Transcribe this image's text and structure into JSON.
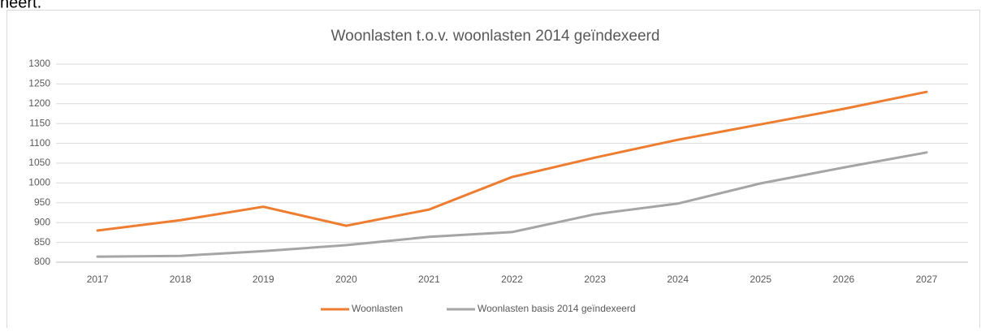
{
  "above_text": "heert.",
  "chart_data": {
    "type": "line",
    "title": "Woonlasten t.o.v. woonlasten 2014 geïndexeerd",
    "categories": [
      "2017",
      "2018",
      "2019",
      "2020",
      "2021",
      "2022",
      "2023",
      "2024",
      "2025",
      "2026",
      "2027"
    ],
    "series": [
      {
        "name": "Woonlasten",
        "color": "#ed7d31",
        "values": [
          880,
          906,
          940,
          892,
          933,
          1015,
          1064,
          1109,
          1148,
          1187,
          1230
        ]
      },
      {
        "name": "Woonlasten basis 2014 geïndexeerd",
        "color": "#a5a5a5",
        "values": [
          814,
          816,
          828,
          843,
          864,
          876,
          921,
          948,
          999,
          1039,
          1077
        ]
      }
    ],
    "ylim": [
      800,
      1300
    ],
    "yticks": [
      800,
      850,
      900,
      950,
      1000,
      1050,
      1100,
      1150,
      1200,
      1250,
      1300
    ],
    "grid": true,
    "legend": "bottom"
  }
}
